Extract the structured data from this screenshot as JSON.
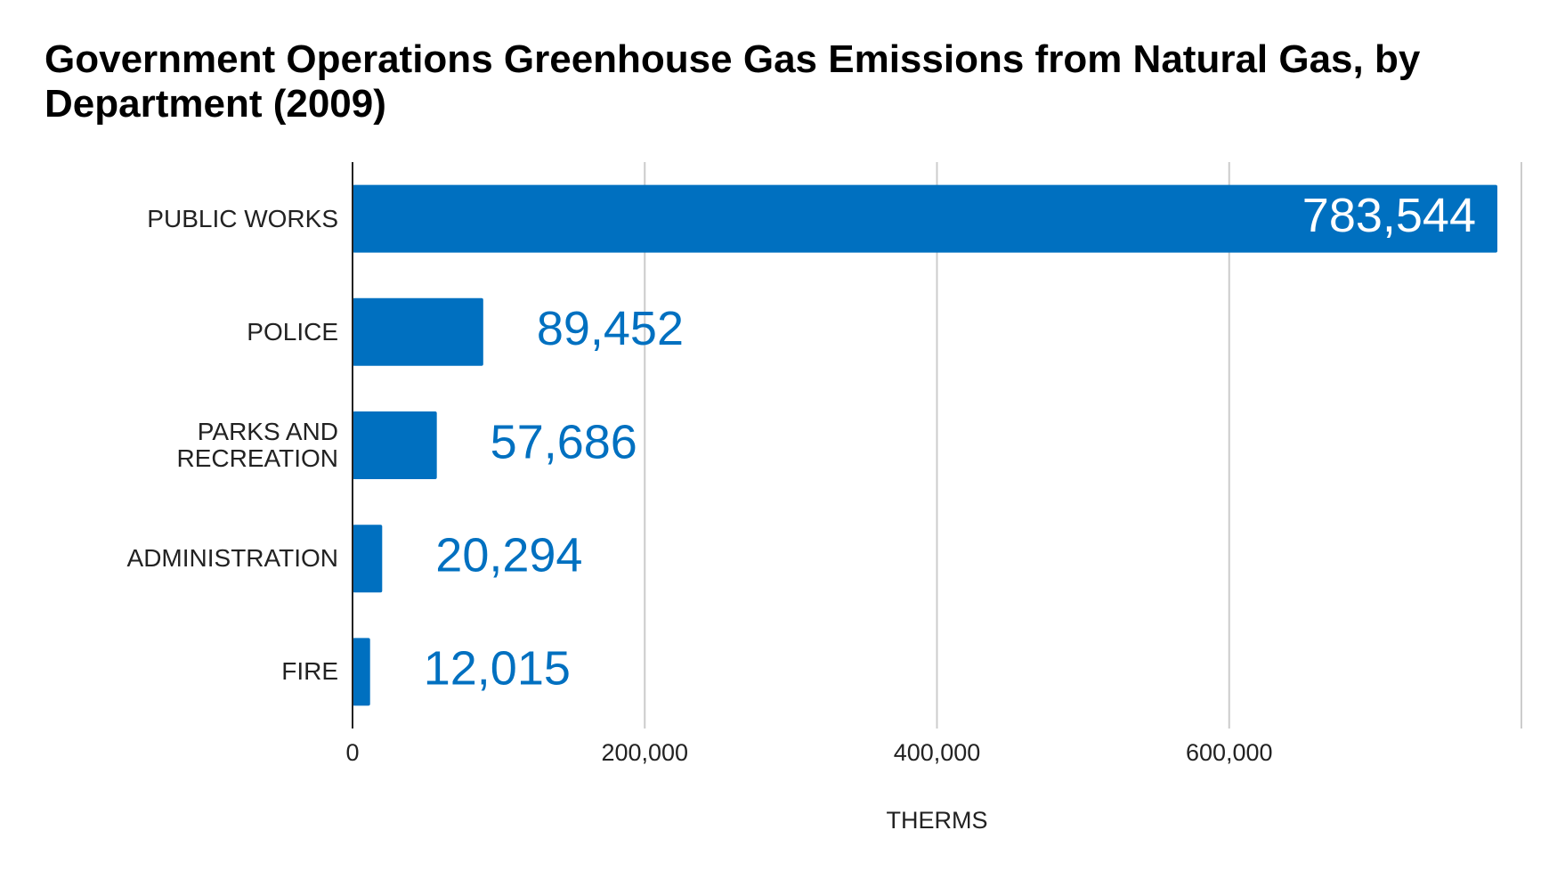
{
  "chart_data": {
    "type": "bar",
    "orientation": "horizontal",
    "title": "Government Operations Greenhouse Gas Emissions from Natural Gas, by Department (2009)",
    "categories": [
      "PUBLIC WORKS",
      "POLICE",
      "PARKS AND RECREATION",
      "ADMINISTRATION",
      "FIRE"
    ],
    "values": [
      783544,
      89452,
      57686,
      20294,
      12015
    ],
    "value_labels": [
      "783,544",
      "89,452",
      "57,686",
      "20,294",
      "12,015"
    ],
    "color": "#0070c0",
    "xlabel": "THERMS",
    "xlim": [
      0,
      800000
    ],
    "xticks": [
      0,
      {
        "value": 200000,
        "label": "200,000"
      },
      {
        "value": 400000,
        "label": "400,000"
      },
      {
        "value": 600000,
        "label": "600,000"
      }
    ],
    "grid": true
  }
}
